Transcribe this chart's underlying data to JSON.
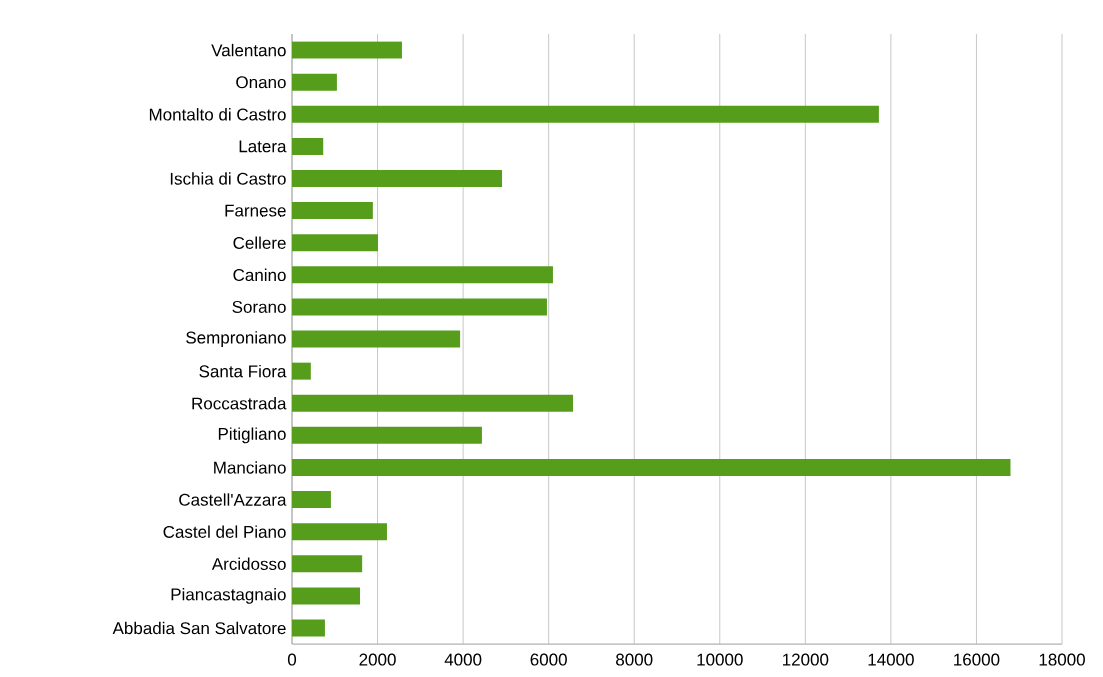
{
  "chart_data": {
    "type": "bar",
    "orientation": "horizontal",
    "categories": [
      "Valentano",
      "Onano",
      "Montalto di Castro",
      "Latera",
      "Ischia di Castro",
      "Farnese",
      "Cellere",
      "Canino",
      "Sorano",
      "Semproniano",
      "Santa Fiora",
      "Roccastrada",
      "Pitigliano",
      "Manciano",
      "Castell'Azzara",
      "Castel del Piano",
      "Arcidosso",
      "Piancastagnaio",
      "Abbadia San Salvatore"
    ],
    "values": [
      2570,
      1050,
      13720,
      730,
      4910,
      1890,
      2010,
      6100,
      5960,
      3930,
      440,
      6570,
      4440,
      16800,
      910,
      2220,
      1640,
      1590,
      770
    ],
    "color": "#579d1c",
    "xlim": [
      0,
      18000
    ],
    "xticks": [
      0,
      2000,
      4000,
      6000,
      8000,
      10000,
      12000,
      14000,
      16000,
      18000
    ],
    "grid": "x"
  }
}
